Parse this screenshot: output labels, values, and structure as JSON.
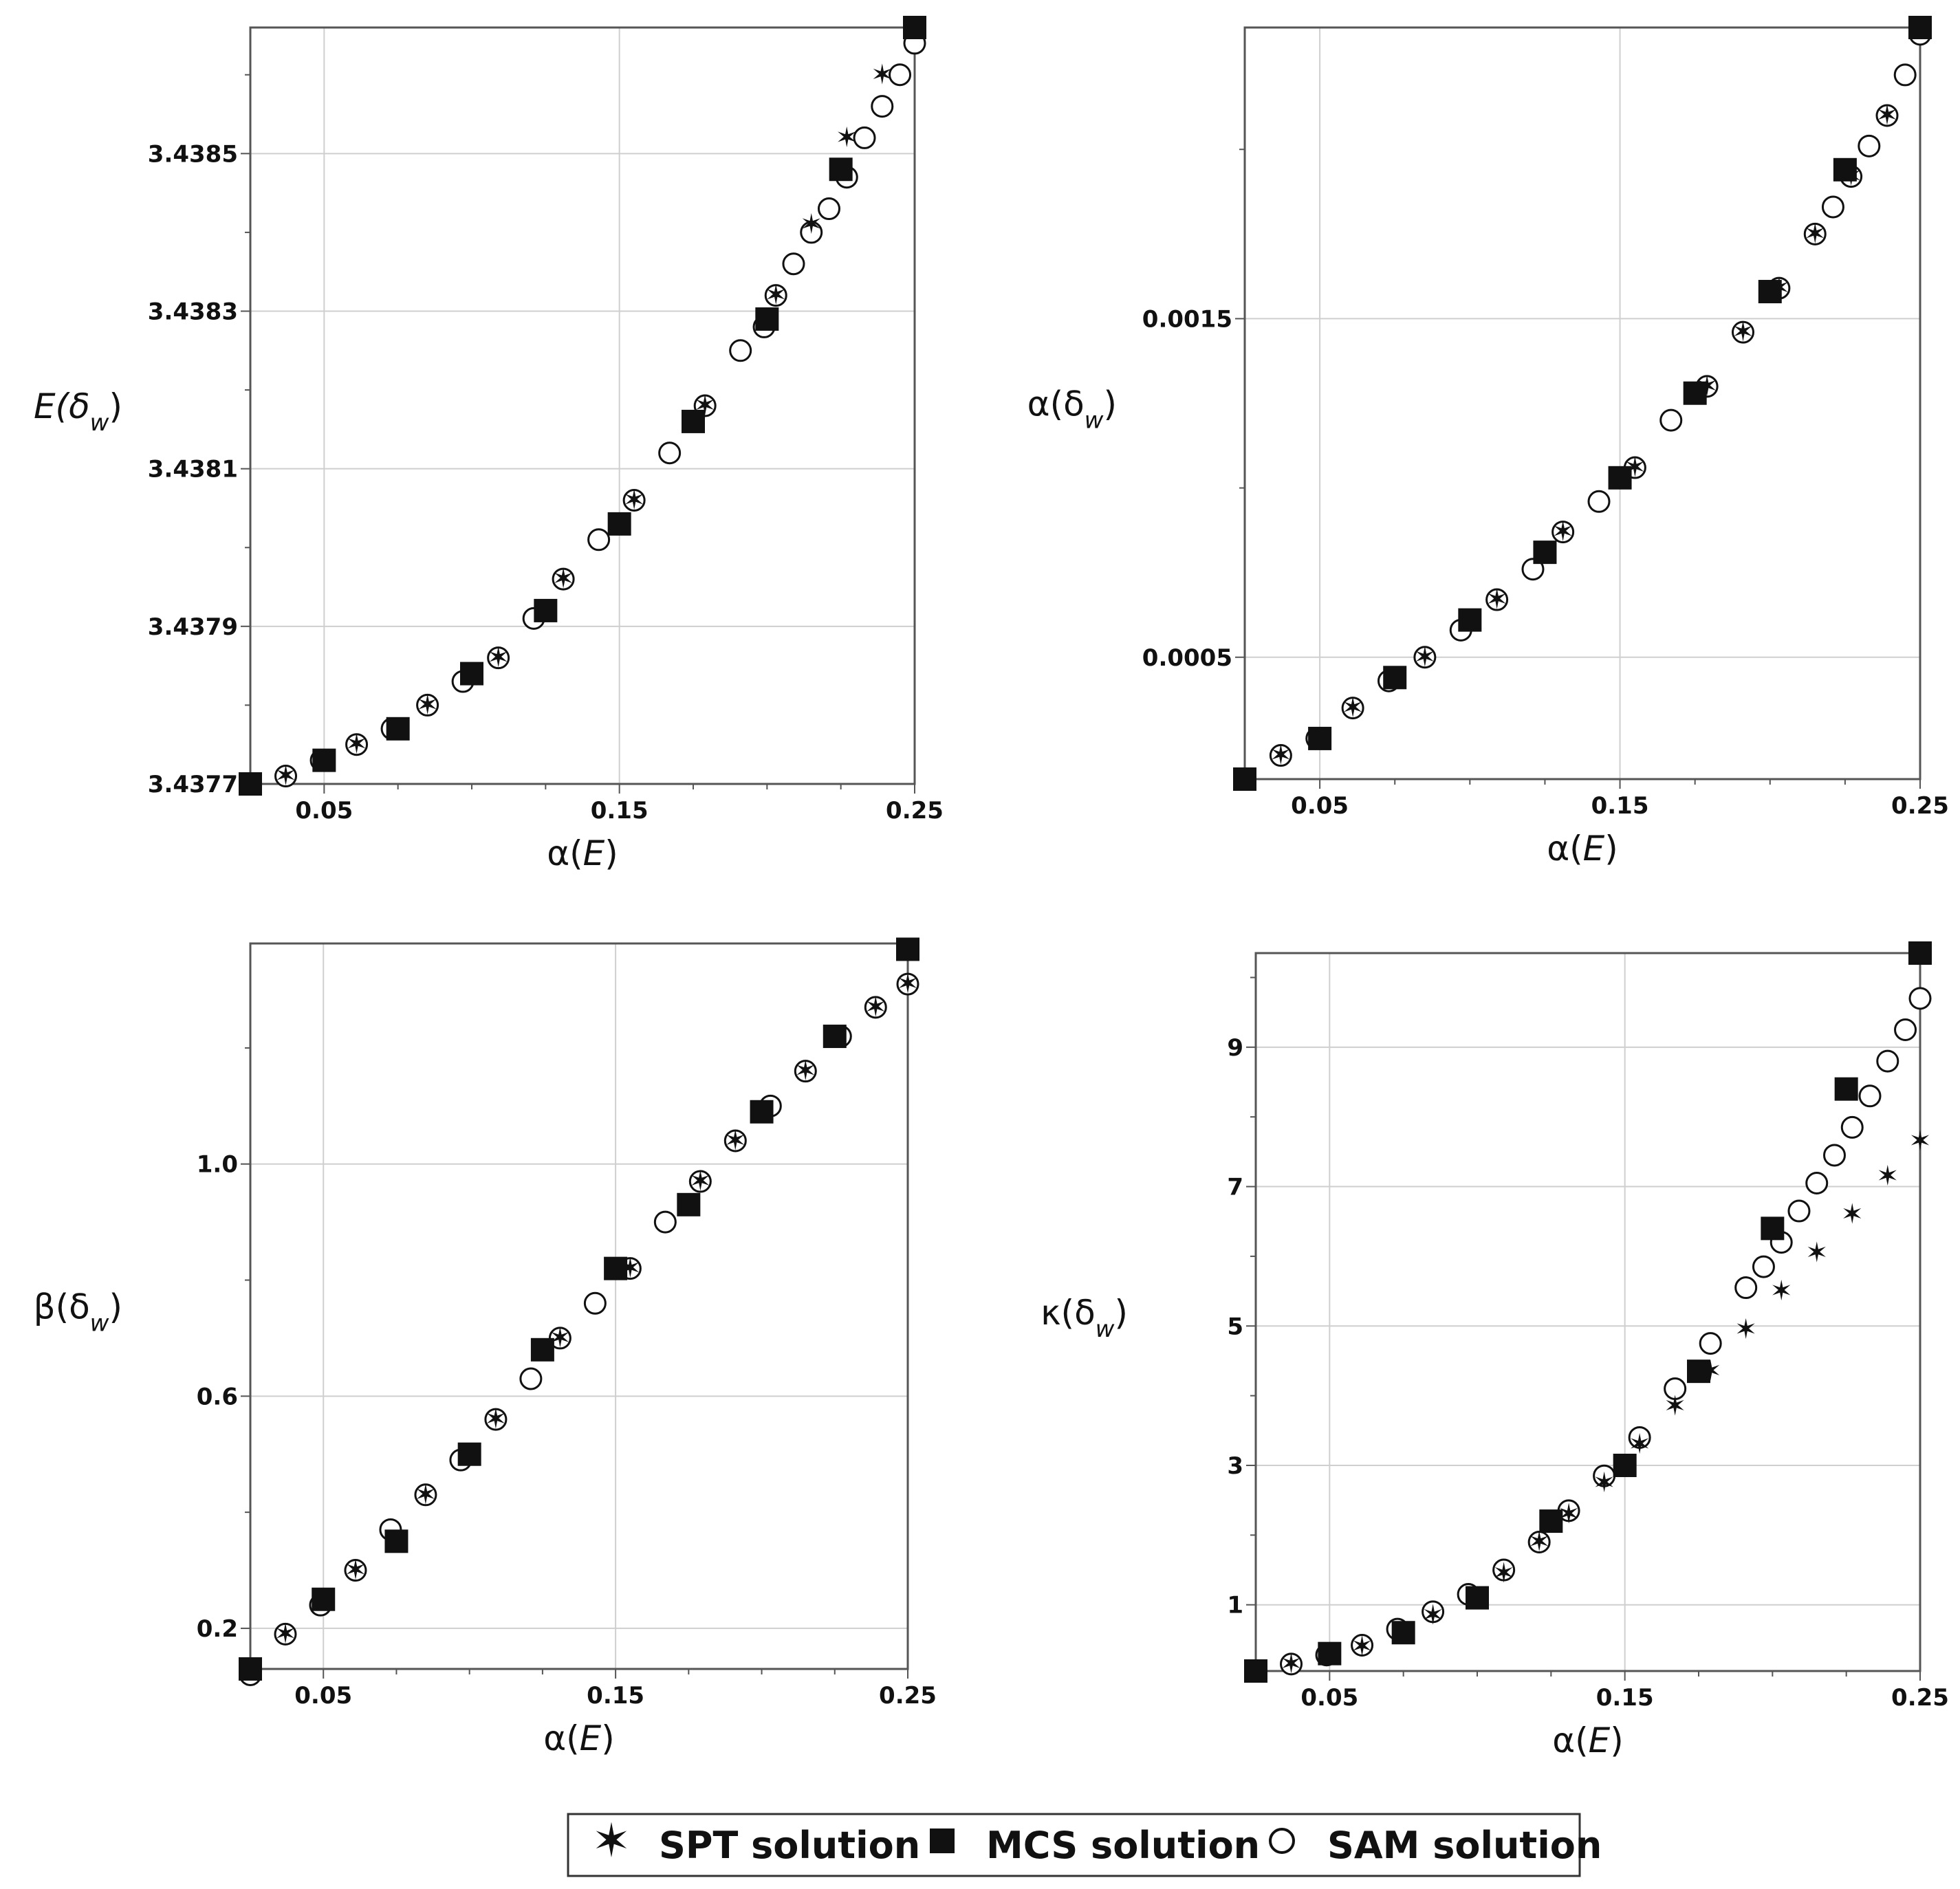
{
  "legend": {
    "spt_label": "SPT solution",
    "mcs_label": "MCS solution",
    "sam_label": "SAM solution"
  },
  "chart_data": [
    {
      "type": "scatter",
      "xlabel": "α(E)",
      "ylabel": "E(δ_w)",
      "xlim": [
        0.025,
        0.25
      ],
      "ylim": [
        3.4377,
        3.43866
      ],
      "xticks": [
        "0.05",
        "0.15",
        "0.25"
      ],
      "yticks": [
        "3.4377",
        "3.4379",
        "3.4381",
        "3.4383",
        "3.4385"
      ],
      "ytick_values": [
        3.4377,
        3.4379,
        3.4381,
        3.4383,
        3.4385
      ],
      "grid": true,
      "series": [
        {
          "name": "SPT solution",
          "x": [
            0.037,
            0.061,
            0.085,
            0.109,
            0.131,
            0.155,
            0.179,
            0.203,
            0.215,
            0.227,
            0.239
          ],
          "y": [
            3.43771,
            3.43775,
            3.4378,
            3.43786,
            3.43796,
            3.43806,
            3.43818,
            3.43832,
            3.43841,
            3.43852,
            3.4386
          ]
        },
        {
          "name": "MCS solution",
          "x": [
            0.025,
            0.05,
            0.075,
            0.1,
            0.125,
            0.15,
            0.175,
            0.2,
            0.225,
            0.25
          ],
          "y": [
            3.4377,
            3.43773,
            3.43777,
            3.43784,
            3.43792,
            3.43803,
            3.43816,
            3.43829,
            3.43848,
            3.43866
          ]
        },
        {
          "name": "SAM solution",
          "x": [
            0.025,
            0.037,
            0.049,
            0.061,
            0.073,
            0.085,
            0.097,
            0.109,
            0.121,
            0.131,
            0.143,
            0.155,
            0.167,
            0.179,
            0.191,
            0.199,
            0.203,
            0.209,
            0.215,
            0.221,
            0.227,
            0.233,
            0.239,
            0.245,
            0.25
          ],
          "y": [
            3.4377,
            3.43771,
            3.43773,
            3.43775,
            3.43777,
            3.4378,
            3.43783,
            3.43786,
            3.43791,
            3.43796,
            3.43801,
            3.43806,
            3.43812,
            3.43818,
            3.43825,
            3.43828,
            3.43832,
            3.43836,
            3.4384,
            3.43843,
            3.43847,
            3.43852,
            3.43856,
            3.4386,
            3.43864
          ]
        }
      ]
    },
    {
      "type": "scatter",
      "xlabel": "α(E)",
      "ylabel": "α(δ_w)",
      "xlim": [
        0.025,
        0.25
      ],
      "ylim": [
        0.00014,
        0.00236
      ],
      "xticks": [
        "0.05",
        "0.15",
        "0.25"
      ],
      "yticks": [
        "0.0005",
        "0.0015"
      ],
      "ytick_values": [
        0.0005,
        0.0015
      ],
      "grid": true,
      "series": [
        {
          "name": "SPT solution",
          "x": [
            0.037,
            0.061,
            0.085,
            0.109,
            0.131,
            0.155,
            0.179,
            0.191,
            0.203,
            0.215,
            0.227,
            0.239
          ],
          "y": [
            0.00021,
            0.00035,
            0.0005,
            0.00067,
            0.00087,
            0.00106,
            0.0013,
            0.00146,
            0.00159,
            0.00175,
            0.00192,
            0.0021
          ]
        },
        {
          "name": "MCS solution",
          "x": [
            0.025,
            0.05,
            0.075,
            0.1,
            0.125,
            0.15,
            0.175,
            0.2,
            0.225,
            0.25
          ],
          "y": [
            0.00014,
            0.00026,
            0.00044,
            0.00061,
            0.00081,
            0.00103,
            0.00128,
            0.00158,
            0.00194,
            0.00236
          ]
        },
        {
          "name": "SAM solution",
          "x": [
            0.025,
            0.037,
            0.049,
            0.061,
            0.073,
            0.085,
            0.097,
            0.109,
            0.121,
            0.131,
            0.143,
            0.155,
            0.167,
            0.179,
            0.191,
            0.203,
            0.215,
            0.221,
            0.227,
            0.233,
            0.239,
            0.245,
            0.25
          ],
          "y": [
            0.00014,
            0.00021,
            0.00026,
            0.00035,
            0.00043,
            0.0005,
            0.00058,
            0.00067,
            0.00076,
            0.00087,
            0.00096,
            0.00106,
            0.0012,
            0.0013,
            0.00146,
            0.00159,
            0.00175,
            0.00183,
            0.00192,
            0.00201,
            0.0021,
            0.00222,
            0.00234
          ]
        }
      ]
    },
    {
      "type": "scatter",
      "xlabel": "α(E)",
      "ylabel": "β(δ_w)",
      "xlim": [
        0.025,
        0.25
      ],
      "ylim": [
        0.13,
        1.38
      ],
      "xticks": [
        "0.05",
        "0.15",
        "0.25"
      ],
      "yticks": [
        "0.2",
        "0.6",
        "1.0"
      ],
      "ytick_values": [
        0.2,
        0.6,
        1.0
      ],
      "grid": true,
      "series": [
        {
          "name": "SPT solution",
          "x": [
            0.037,
            0.061,
            0.085,
            0.109,
            0.131,
            0.155,
            0.179,
            0.191,
            0.215,
            0.239,
            0.25
          ],
          "y": [
            0.19,
            0.3,
            0.43,
            0.56,
            0.7,
            0.82,
            0.97,
            1.04,
            1.16,
            1.27,
            1.31
          ]
        },
        {
          "name": "MCS solution",
          "x": [
            0.025,
            0.05,
            0.075,
            0.1,
            0.125,
            0.15,
            0.175,
            0.2,
            0.225,
            0.25
          ],
          "y": [
            0.13,
            0.25,
            0.35,
            0.5,
            0.68,
            0.82,
            0.93,
            1.09,
            1.22,
            1.37
          ]
        },
        {
          "name": "SAM solution",
          "x": [
            0.025,
            0.037,
            0.049,
            0.061,
            0.073,
            0.085,
            0.097,
            0.109,
            0.121,
            0.131,
            0.143,
            0.155,
            0.167,
            0.179,
            0.191,
            0.203,
            0.215,
            0.227,
            0.239,
            0.25
          ],
          "y": [
            0.12,
            0.19,
            0.24,
            0.3,
            0.37,
            0.43,
            0.49,
            0.56,
            0.63,
            0.7,
            0.76,
            0.82,
            0.9,
            0.97,
            1.04,
            1.1,
            1.16,
            1.22,
            1.27,
            1.31
          ]
        }
      ]
    },
    {
      "type": "scatter",
      "xlabel": "α(E)",
      "ylabel": "κ(δ_w)",
      "xlim": [
        0.025,
        0.25
      ],
      "ylim": [
        0.05,
        10.35
      ],
      "xticks": [
        "0.05",
        "0.15",
        "0.25"
      ],
      "yticks": [
        "1",
        "3",
        "5",
        "7",
        "9"
      ],
      "ytick_values": [
        1,
        3,
        5,
        7,
        9
      ],
      "grid": true,
      "series": [
        {
          "name": "SPT solution",
          "x": [
            0.037,
            0.061,
            0.085,
            0.109,
            0.121,
            0.131,
            0.143,
            0.155,
            0.167,
            0.179,
            0.191,
            0.203,
            0.215,
            0.227,
            0.239,
            0.25
          ],
          "y": [
            0.15,
            0.4,
            0.85,
            1.45,
            1.9,
            2.3,
            2.75,
            3.3,
            3.85,
            4.35,
            4.95,
            5.5,
            6.05,
            6.6,
            7.15,
            7.65
          ]
        },
        {
          "name": "MCS solution",
          "x": [
            0.025,
            0.05,
            0.075,
            0.1,
            0.125,
            0.15,
            0.175,
            0.2,
            0.225,
            0.25
          ],
          "y": [
            0.05,
            0.3,
            0.6,
            1.1,
            2.2,
            3.0,
            4.35,
            6.4,
            8.4,
            10.35
          ]
        },
        {
          "name": "SAM solution",
          "x": [
            0.037,
            0.049,
            0.061,
            0.073,
            0.085,
            0.097,
            0.109,
            0.121,
            0.131,
            0.143,
            0.155,
            0.167,
            0.179,
            0.191,
            0.197,
            0.203,
            0.209,
            0.215,
            0.221,
            0.227,
            0.233,
            0.239,
            0.245,
            0.25
          ],
          "y": [
            0.15,
            0.28,
            0.42,
            0.65,
            0.9,
            1.15,
            1.5,
            1.9,
            2.35,
            2.85,
            3.4,
            4.1,
            4.75,
            5.55,
            5.85,
            6.2,
            6.65,
            7.05,
            7.45,
            7.85,
            8.3,
            8.8,
            9.25,
            9.7
          ]
        }
      ]
    }
  ]
}
